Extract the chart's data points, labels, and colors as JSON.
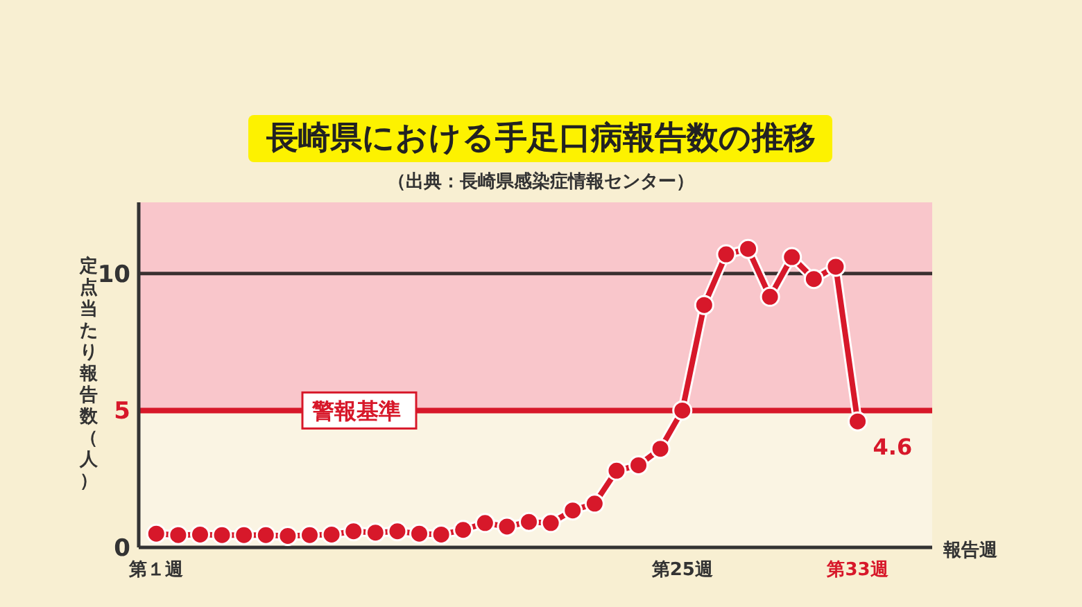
{
  "chart_data": {
    "type": "line",
    "title": "長崎県における手足口病報告数の推移",
    "subtitle": "（出典：長崎県感染症情報センター）",
    "xlabel": "報告週",
    "ylabel": "定点当たり報告数（人）",
    "categories": [
      "第１週",
      null,
      null,
      null,
      null,
      null,
      null,
      null,
      null,
      null,
      null,
      null,
      null,
      null,
      null,
      null,
      null,
      null,
      null,
      null,
      null,
      null,
      null,
      null,
      "第25週",
      null,
      null,
      null,
      null,
      null,
      null,
      null,
      "第33週"
    ],
    "series": [
      {
        "color": "#d7182a",
        "values": [
          0.5,
          0.45,
          0.47,
          0.45,
          0.45,
          0.45,
          0.42,
          0.45,
          0.47,
          0.59,
          0.54,
          0.59,
          0.5,
          0.47,
          0.64,
          0.89,
          0.76,
          0.93,
          0.89,
          1.35,
          1.6,
          2.8,
          3.0,
          3.6,
          5.0,
          8.85,
          10.7,
          10.9,
          9.15,
          10.6,
          9.8,
          10.25,
          4.6
        ]
      }
    ],
    "marker": "circle",
    "line_style": "solid",
    "ylim": [
      0,
      12.6
    ],
    "yticks": [
      0,
      5,
      10
    ],
    "bands": [
      {
        "axis": "y",
        "from": 5,
        "to": 12.6,
        "color": "#f9c6cb"
      }
    ],
    "ref_lines": [
      {
        "axis": "y",
        "value": 10,
        "color": "#3a3030"
      },
      {
        "axis": "y",
        "value": 5,
        "label": "警報基準",
        "color": "#d7182a"
      }
    ],
    "annotations": [
      {
        "text": "4.6",
        "x": "第33週",
        "y": 4.6
      }
    ]
  }
}
